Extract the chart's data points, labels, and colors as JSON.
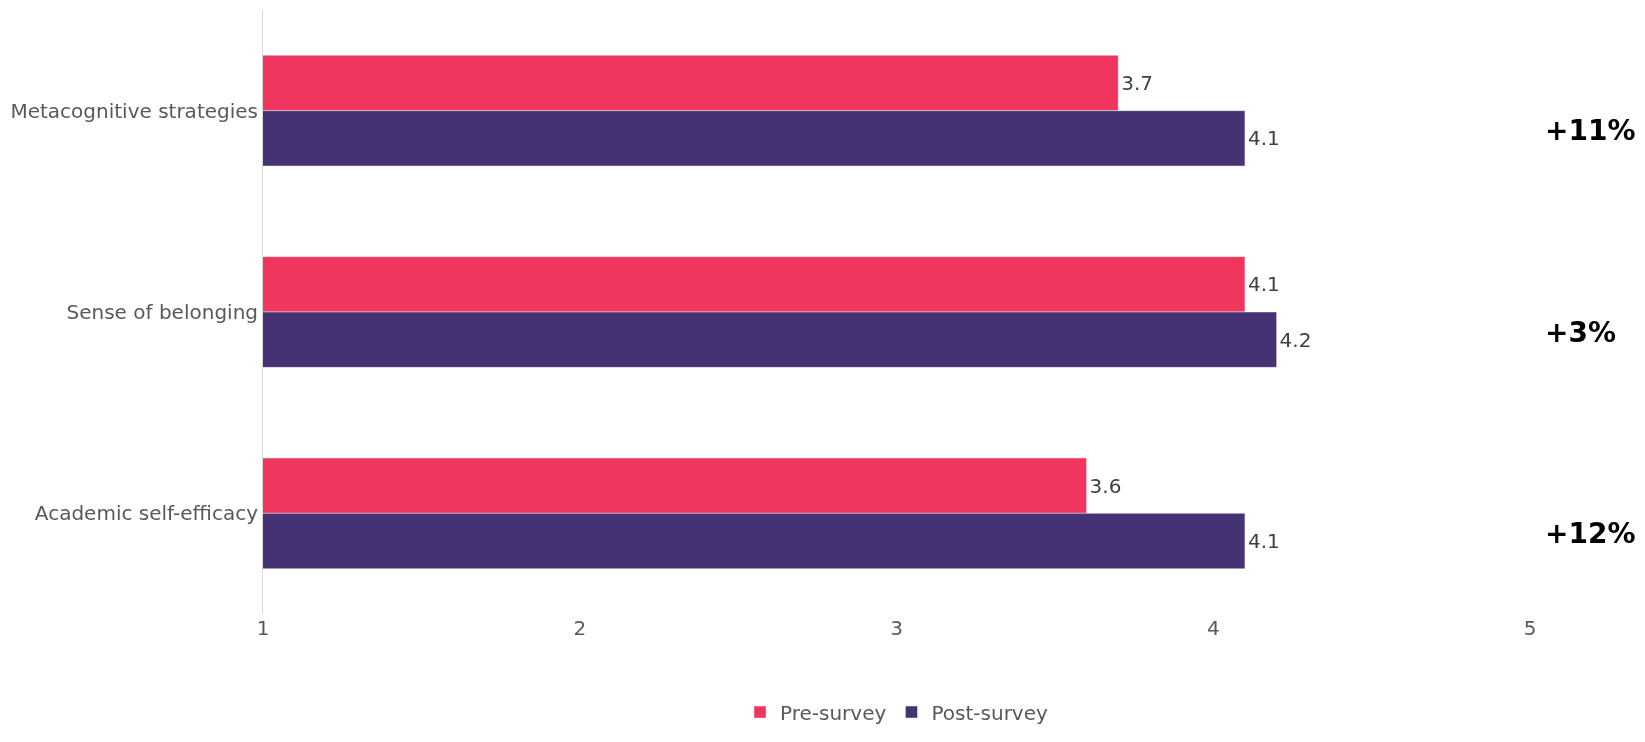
{
  "chart_data": {
    "type": "bar",
    "orientation": "horizontal",
    "categories": [
      "Metacognitive strategies",
      "Sense of belonging",
      "Academic self-efficacy"
    ],
    "series": [
      {
        "name": "Pre-survey",
        "color": "#f0365f",
        "values": [
          3.7,
          4.1,
          3.6
        ]
      },
      {
        "name": "Post-survey",
        "color": "#453274",
        "values": [
          4.1,
          4.2,
          4.1
        ]
      }
    ],
    "xlim": [
      1,
      5
    ],
    "xticks": [
      1,
      2,
      3,
      4,
      5
    ],
    "grid": false,
    "legend": "bottom",
    "data_labels": true,
    "annotations": [
      "+11%",
      "+3%",
      "+12%"
    ]
  }
}
